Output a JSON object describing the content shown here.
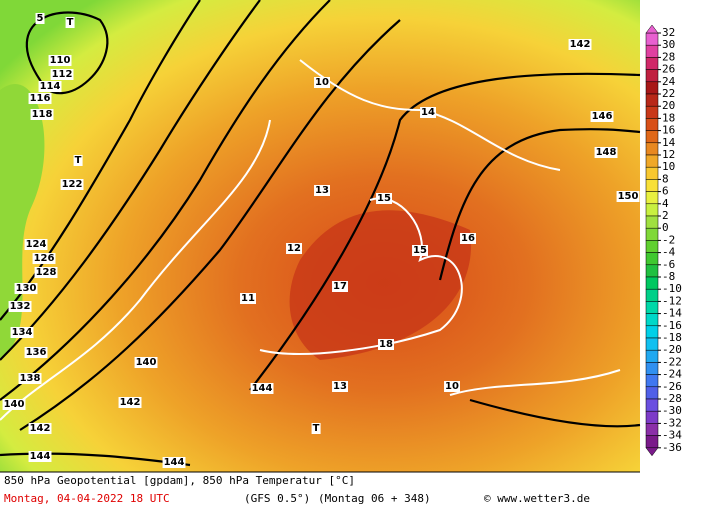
{
  "map": {
    "labels": [
      "5",
      "T",
      "110",
      "112",
      "114",
      "116",
      "118",
      "122",
      "124",
      "126",
      "128",
      "130",
      "132",
      "134",
      "136",
      "138",
      "140",
      "142",
      "144",
      "142",
      "140",
      "10",
      "14",
      "15",
      "16",
      "13",
      "17",
      "18",
      "12",
      "11",
      "T",
      "144",
      "142",
      "146",
      "148",
      "150",
      "10",
      "13",
      "T",
      "15",
      "144"
    ]
  },
  "colorbar": {
    "ticks": [
      32,
      30,
      28,
      26,
      24,
      22,
      20,
      18,
      16,
      14,
      12,
      10,
      8,
      6,
      4,
      2,
      0,
      -2,
      -4,
      -6,
      -8,
      -10,
      -12,
      -14,
      -16,
      -18,
      -20,
      -22,
      -24,
      -26,
      -28,
      -30,
      -32,
      -34,
      -36
    ],
    "colors": [
      "#e860d0",
      "#e040a0",
      "#d02868",
      "#c02040",
      "#a81818",
      "#b82818",
      "#c83818",
      "#d85018",
      "#e06818",
      "#e88820",
      "#f0a828",
      "#f8c830",
      "#f8e038",
      "#e8f040",
      "#c8f040",
      "#a0e040",
      "#80d838",
      "#60d030",
      "#40c830",
      "#20c040",
      "#00c860",
      "#00d088",
      "#00d8a8",
      "#00d8c8",
      "#00d0e8",
      "#10c0f0",
      "#20a8f0",
      "#3090f0",
      "#4078f0",
      "#5060e8",
      "#6a4fe0",
      "#7d3bc8",
      "#8b2fa8",
      "#7a1a8a"
    ]
  },
  "footer": {
    "title": "850 hPa Geopotential [gpdam], 850 hPa Temperatur [°C]",
    "date": "Montag, 04-04-2022  18 UTC",
    "model": "(GFS 0.5°)",
    "run": "(Montag 06 + 348)",
    "credit": "© www.wetter3.de"
  }
}
